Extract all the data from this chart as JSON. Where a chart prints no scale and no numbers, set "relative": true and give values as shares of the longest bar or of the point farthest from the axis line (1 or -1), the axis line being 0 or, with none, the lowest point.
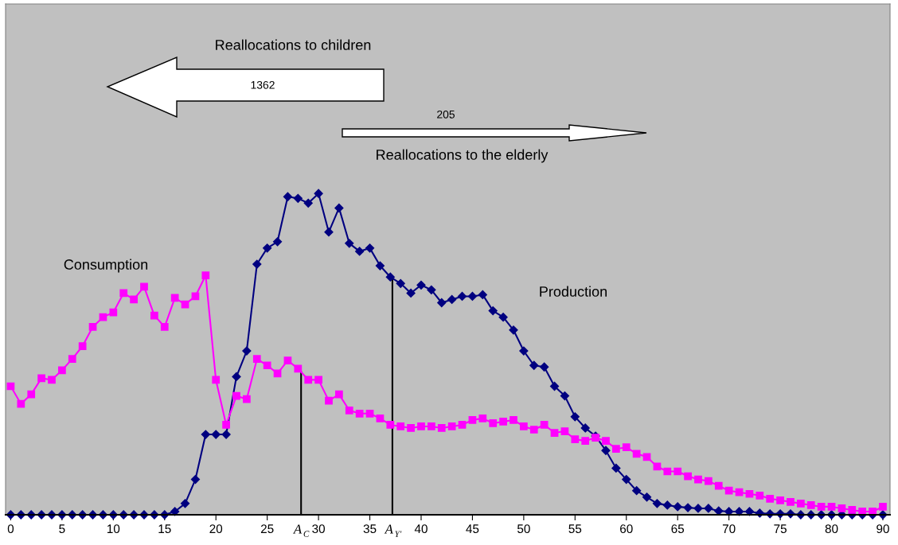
{
  "chart_data": {
    "type": "line",
    "relative": true,
    "categories": [
      "0",
      null,
      null,
      null,
      null,
      "5",
      null,
      null,
      null,
      null,
      "10",
      null,
      null,
      null,
      null,
      "15",
      null,
      null,
      null,
      null,
      "20",
      null,
      null,
      null,
      null,
      "25",
      null,
      null,
      null,
      null,
      "30",
      null,
      null,
      null,
      null,
      "35",
      null,
      null,
      null,
      null,
      "40",
      null,
      null,
      null,
      null,
      "45",
      null,
      null,
      null,
      null,
      "50",
      null,
      null,
      null,
      null,
      "55",
      null,
      null,
      null,
      null,
      "60",
      null,
      null,
      null,
      null,
      "65",
      null,
      null,
      null,
      null,
      "70",
      null,
      null,
      null,
      null,
      "75",
      null,
      null,
      null,
      null,
      "80",
      null,
      null,
      null,
      null,
      "90"
    ],
    "series": [
      {
        "name": "Production",
        "color": "#000080",
        "marker": "diamond",
        "values": [
          0,
          0,
          0,
          0,
          0,
          0,
          0,
          0,
          0,
          0,
          0,
          0,
          0,
          0,
          0,
          0,
          0.01,
          0.035,
          0.11,
          0.25,
          0.25,
          0.25,
          0.43,
          0.51,
          0.78,
          0.83,
          0.85,
          0.99,
          0.985,
          0.97,
          1.0,
          0.88,
          0.955,
          0.845,
          0.82,
          0.83,
          0.775,
          0.74,
          0.72,
          0.69,
          0.715,
          0.7,
          0.66,
          0.67,
          0.68,
          0.68,
          0.685,
          0.635,
          0.615,
          0.575,
          0.51,
          0.465,
          0.46,
          0.4,
          0.37,
          0.305,
          0.27,
          0.245,
          0.2,
          0.145,
          0.11,
          0.075,
          0.055,
          0.035,
          0.03,
          0.025,
          0.022,
          0.02,
          0.02,
          0.012,
          0.01,
          0.01,
          0.01,
          0.005,
          0.003,
          0.003,
          0.003,
          0,
          0,
          0,
          0,
          0,
          0,
          0,
          0,
          0
        ]
      },
      {
        "name": "Consumption",
        "color": "#ff00ff",
        "marker": "square",
        "values": [
          0.4,
          0.345,
          0.375,
          0.425,
          0.42,
          0.45,
          0.485,
          0.525,
          0.585,
          0.615,
          0.63,
          0.69,
          0.67,
          0.71,
          0.62,
          0.585,
          0.675,
          0.655,
          0.68,
          0.745,
          0.42,
          0.28,
          0.37,
          0.36,
          0.485,
          0.465,
          0.44,
          0.48,
          0.455,
          0.42,
          0.42,
          0.355,
          0.375,
          0.325,
          0.315,
          0.315,
          0.3,
          0.28,
          0.275,
          0.27,
          0.275,
          0.275,
          0.27,
          0.275,
          0.28,
          0.295,
          0.3,
          0.285,
          0.29,
          0.295,
          0.275,
          0.265,
          0.28,
          0.255,
          0.26,
          0.235,
          0.23,
          0.24,
          0.23,
          0.205,
          0.21,
          0.19,
          0.18,
          0.15,
          0.135,
          0.135,
          0.12,
          0.11,
          0.105,
          0.09,
          0.075,
          0.07,
          0.065,
          0.06,
          0.05,
          0.045,
          0.04,
          0.035,
          0.03,
          0.025,
          0.025,
          0.02,
          0.015,
          0.01,
          0.01,
          0.025
        ]
      }
    ],
    "annotations": [
      "Reallocations to children",
      "1362",
      "205",
      "Reallocations to the elderly",
      "A$_{C}$",
      "A$_{Y'}$"
    ],
    "legend": false,
    "grid": false,
    "line_style": "solid"
  }
}
